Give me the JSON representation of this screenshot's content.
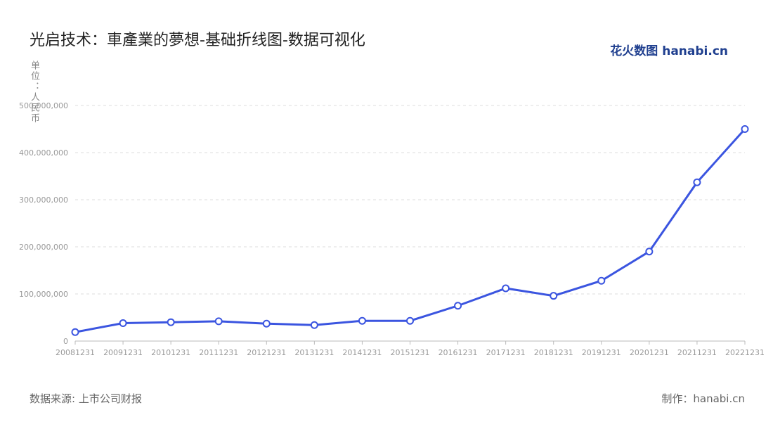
{
  "chart_data": {
    "type": "line",
    "title": "光启技术：車產業的夢想-基础折线图-数据可视化",
    "y_label": "单位：人民币",
    "source": "数据来源: 上市公司财报",
    "credit": "制作：hanabi.cn",
    "logo": "花火数图 hanabi.cn",
    "x": [
      "20081231",
      "20091231",
      "20101231",
      "20111231",
      "20121231",
      "20131231",
      "20141231",
      "20151231",
      "20161231",
      "20171231",
      "20181231",
      "20191231",
      "20201231",
      "20211231",
      "20221231"
    ],
    "series": [
      {
        "color": "#3b55e0",
        "values": [
          19000000,
          38000000,
          40000000,
          42000000,
          37000000,
          34000000,
          43000000,
          43000000,
          75000000,
          112000000,
          96000000,
          128000000,
          190000000,
          337000000,
          450000000
        ]
      }
    ],
    "ylim": [
      0,
      500000000
    ],
    "yticks": [
      0,
      {
        "value": 100000000,
        "label": "100,000,000"
      },
      {
        "value": 200000000,
        "label": "200,000,000"
      },
      {
        "value": 300000000,
        "label": "300,000,000"
      },
      {
        "value": 400000000,
        "label": "400,000,000"
      },
      {
        "value": 500000000,
        "label": "500,000,000"
      }
    ],
    "grid": true
  }
}
